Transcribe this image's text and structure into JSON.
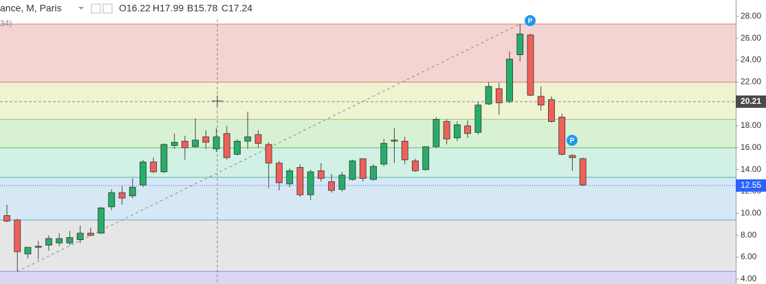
{
  "chart_data": {
    "type": "candlestick",
    "header": {
      "symbol": "ance, M, Paris",
      "ohlc": [
        "O16.22",
        "H17.99",
        "B15.78",
        "C17.24"
      ],
      "note": "34)"
    },
    "open": [
      9.8,
      9.4,
      6.3,
      6.9,
      7.1,
      7.3,
      7.3,
      7.6,
      8.2,
      8.2,
      10.6,
      11.9,
      11.6,
      12.6,
      14.7,
      13.8,
      16.2,
      16.6,
      16.1,
      17.0,
      15.9,
      17.3,
      15.4,
      16.6,
      17.2,
      16.3,
      14.6,
      12.7,
      14.2,
      11.7,
      13.9,
      12.9,
      12.2,
      13.1,
      15.0,
      13.1,
      14.5,
      16.6,
      16.6,
      14.8,
      14.0,
      16.1,
      18.4,
      16.9,
      18.0,
      17.4,
      20.0,
      21.4,
      20.2,
      24.5,
      26.3,
      20.7,
      20.4,
      18.8,
      15.3,
      15.0
    ],
    "high": [
      10.8,
      9.5,
      6.8,
      7.5,
      8.0,
      8.2,
      8.4,
      8.9,
      8.7,
      10.6,
      12.2,
      12.5,
      13.2,
      14.9,
      15.1,
      16.4,
      17.3,
      17.1,
      18.7,
      17.6,
      17.8,
      18.0,
      16.8,
      19.3,
      17.6,
      16.5,
      14.8,
      14.1,
      14.5,
      14.0,
      14.6,
      13.6,
      13.8,
      14.9,
      15.0,
      14.5,
      16.8,
      17.8,
      17.0,
      15.0,
      16.1,
      18.8,
      18.6,
      18.4,
      18.5,
      20.2,
      22.0,
      21.9,
      24.8,
      27.3,
      26.4,
      21.6,
      20.7,
      19.1,
      15.4,
      15.1
    ],
    "low": [
      9.2,
      4.7,
      5.9,
      5.8,
      6.6,
      7.0,
      7.1,
      7.3,
      7.9,
      8.1,
      10.3,
      10.8,
      11.4,
      12.4,
      13.7,
      13.7,
      15.9,
      14.9,
      16.0,
      15.9,
      15.6,
      14.9,
      15.3,
      15.9,
      16.0,
      12.3,
      12.1,
      12.4,
      11.5,
      11.2,
      12.9,
      11.9,
      12.0,
      13.0,
      12.9,
      13.0,
      14.3,
      14.6,
      14.5,
      13.8,
      13.9,
      16.0,
      16.3,
      16.6,
      16.9,
      17.2,
      19.9,
      19.0,
      20.1,
      23.9,
      20.7,
      19.4,
      18.3,
      15.3,
      13.9,
      12.5
    ],
    "close": [
      9.3,
      6.5,
      6.9,
      7.0,
      7.7,
      7.7,
      7.8,
      8.2,
      8.0,
      10.5,
      11.9,
      11.4,
      12.4,
      14.7,
      13.8,
      16.3,
      16.5,
      16.0,
      16.7,
      16.5,
      17.0,
      15.1,
      16.6,
      17.0,
      16.4,
      14.6,
      12.8,
      13.9,
      11.7,
      13.8,
      13.2,
      12.1,
      13.5,
      14.8,
      13.2,
      14.3,
      16.4,
      16.7,
      14.9,
      13.9,
      16.1,
      18.6,
      16.8,
      18.1,
      17.3,
      19.9,
      21.6,
      20.1,
      24.1,
      26.4,
      20.8,
      19.9,
      18.4,
      15.4,
      15.1,
      12.6
    ],
    "up_color": "#26ad6a",
    "down_color": "#f0605a",
    "ylim": [
      3.55,
      29.5
    ],
    "yticks": [
      {
        "value": 4,
        "label": "4.00"
      },
      {
        "value": 6,
        "label": "6.00"
      },
      {
        "value": 8,
        "label": "8.00"
      },
      {
        "value": 10,
        "label": "10.00"
      },
      {
        "value": 12,
        "label": "12.00"
      },
      {
        "value": 14,
        "label": "14.00"
      },
      {
        "value": 16,
        "label": "16.00"
      },
      {
        "value": 18,
        "label": "18.00"
      },
      {
        "value": 20,
        "label": "20.00"
      },
      {
        "value": 22,
        "label": "22.00"
      },
      {
        "value": 24,
        "label": "24.00"
      },
      {
        "value": 26,
        "label": "26.00"
      },
      {
        "value": 28,
        "label": "28.00"
      }
    ],
    "fib_levels": [
      27.3,
      22.0,
      18.6,
      16.0,
      13.3,
      9.4,
      4.7
    ],
    "fib_line_colors": [
      "#e57373",
      "#e57373",
      "#9ccc65",
      "#66bb6a",
      "#4db6ac",
      "#64a6d9",
      "#8a8ad8"
    ],
    "fib_fill_colors": [
      "#f4d4d3",
      "#eef3d2",
      "#d9f1d3",
      "#d2f1e5",
      "#d6e8f4",
      "#e6e6e6",
      "#d9d7f5"
    ],
    "last_price": {
      "value": 12.55,
      "label": "12.55",
      "color": "#2962ff"
    },
    "crosshair": {
      "value": 20.21,
      "label": "20.21"
    },
    "markers": [
      "P",
      "P"
    ]
  }
}
